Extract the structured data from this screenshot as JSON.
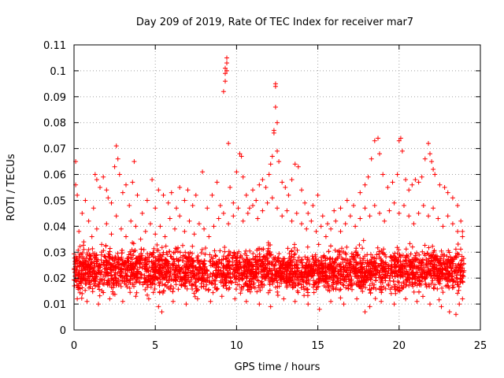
{
  "chart_data": {
    "type": "scatter",
    "title": "Day 209 of 2019, Rate Of TEC Index for receiver mar7",
    "xlabel": "GPS time / hours",
    "ylabel": "ROTI / TECUs",
    "xlim": [
      0,
      25
    ],
    "ylim": [
      0,
      0.11
    ],
    "x_ticks": [
      "0",
      "5",
      "10",
      "15",
      "20",
      "25"
    ],
    "y_ticks": [
      "0",
      "0.01",
      "0.02",
      "0.03",
      "0.04",
      "0.05",
      "0.06",
      "0.07",
      "0.08",
      "0.09",
      "0.1",
      "0.11"
    ],
    "grid": true,
    "marker": "plus",
    "color": "#ff0000",
    "series": [
      {
        "points": [
          [
            0.1,
            0.065
          ],
          [
            0.1,
            0.056
          ],
          [
            0.2,
            0.052
          ],
          [
            0.5,
            0.045
          ],
          [
            0.7,
            0.05
          ],
          [
            0.9,
            0.042
          ],
          [
            1.2,
            0.047
          ],
          [
            1.3,
            0.06
          ],
          [
            1.4,
            0.058
          ],
          [
            1.6,
            0.055
          ],
          [
            1.8,
            0.059
          ],
          [
            2.0,
            0.054
          ],
          [
            2.1,
            0.051
          ],
          [
            2.3,
            0.049
          ],
          [
            2.5,
            0.063
          ],
          [
            2.6,
            0.071
          ],
          [
            2.7,
            0.066
          ],
          [
            2.8,
            0.06
          ],
          [
            3.0,
            0.053
          ],
          [
            3.2,
            0.056
          ],
          [
            3.4,
            0.048
          ],
          [
            3.6,
            0.057
          ],
          [
            3.7,
            0.065
          ],
          [
            3.9,
            0.052
          ],
          [
            4.2,
            0.045
          ],
          [
            4.5,
            0.05
          ],
          [
            4.8,
            0.058
          ],
          [
            5.0,
            0.047
          ],
          [
            5.2,
            0.054
          ],
          [
            5.5,
            0.052
          ],
          [
            5.8,
            0.049
          ],
          [
            6.0,
            0.053
          ],
          [
            6.3,
            0.047
          ],
          [
            6.5,
            0.055
          ],
          [
            6.8,
            0.05
          ],
          [
            7.0,
            0.054
          ],
          [
            7.3,
            0.048
          ],
          [
            7.5,
            0.052
          ],
          [
            7.9,
            0.061
          ],
          [
            8.2,
            0.047
          ],
          [
            8.5,
            0.052
          ],
          [
            8.8,
            0.057
          ],
          [
            9.0,
            0.048
          ],
          [
            9.2,
            0.092
          ],
          [
            9.3,
            0.096
          ],
          [
            9.3,
            0.099
          ],
          [
            9.3,
            0.101
          ],
          [
            9.4,
            0.105
          ],
          [
            9.4,
            0.103
          ],
          [
            9.4,
            0.1
          ],
          [
            9.5,
            0.072
          ],
          [
            9.6,
            0.055
          ],
          [
            9.8,
            0.049
          ],
          [
            10.0,
            0.061
          ],
          [
            10.2,
            0.068
          ],
          [
            10.3,
            0.067
          ],
          [
            10.4,
            0.059
          ],
          [
            10.6,
            0.052
          ],
          [
            10.8,
            0.047
          ],
          [
            11.0,
            0.054
          ],
          [
            11.2,
            0.05
          ],
          [
            11.4,
            0.056
          ],
          [
            11.6,
            0.058
          ],
          [
            11.8,
            0.055
          ],
          [
            12.0,
            0.06
          ],
          [
            12.1,
            0.064
          ],
          [
            12.2,
            0.067
          ],
          [
            12.3,
            0.077
          ],
          [
            12.3,
            0.076
          ],
          [
            12.4,
            0.095
          ],
          [
            12.4,
            0.094
          ],
          [
            12.4,
            0.086
          ],
          [
            12.5,
            0.08
          ],
          [
            12.5,
            0.069
          ],
          [
            12.6,
            0.065
          ],
          [
            12.8,
            0.057
          ],
          [
            13.0,
            0.055
          ],
          [
            13.2,
            0.052
          ],
          [
            13.4,
            0.058
          ],
          [
            13.6,
            0.064
          ],
          [
            13.8,
            0.063
          ],
          [
            14.0,
            0.054
          ],
          [
            14.2,
            0.049
          ],
          [
            14.4,
            0.045
          ],
          [
            14.7,
            0.048
          ],
          [
            15.0,
            0.052
          ],
          [
            15.3,
            0.044
          ],
          [
            15.6,
            0.041
          ],
          [
            16.0,
            0.046
          ],
          [
            16.4,
            0.047
          ],
          [
            16.8,
            0.05
          ],
          [
            17.2,
            0.048
          ],
          [
            17.6,
            0.053
          ],
          [
            17.9,
            0.056
          ],
          [
            18.1,
            0.059
          ],
          [
            18.3,
            0.066
          ],
          [
            18.5,
            0.073
          ],
          [
            18.7,
            0.074
          ],
          [
            18.8,
            0.068
          ],
          [
            19.0,
            0.06
          ],
          [
            19.3,
            0.055
          ],
          [
            19.6,
            0.057
          ],
          [
            19.9,
            0.06
          ],
          [
            20.0,
            0.073
          ],
          [
            20.1,
            0.074
          ],
          [
            20.2,
            0.069
          ],
          [
            20.4,
            0.058
          ],
          [
            20.6,
            0.054
          ],
          [
            20.8,
            0.056
          ],
          [
            21.0,
            0.058
          ],
          [
            21.2,
            0.057
          ],
          [
            21.4,
            0.059
          ],
          [
            21.6,
            0.066
          ],
          [
            21.8,
            0.072
          ],
          [
            21.9,
            0.068
          ],
          [
            22.0,
            0.065
          ],
          [
            22.1,
            0.062
          ],
          [
            22.2,
            0.06
          ],
          [
            22.5,
            0.056
          ],
          [
            22.8,
            0.055
          ],
          [
            23.0,
            0.053
          ],
          [
            23.3,
            0.051
          ],
          [
            23.6,
            0.048
          ],
          [
            23.8,
            0.042
          ],
          [
            23.9,
            0.038
          ],
          [
            0.3,
            0.038
          ],
          [
            0.6,
            0.034
          ],
          [
            0.9,
            0.031
          ],
          [
            1.1,
            0.036
          ],
          [
            1.4,
            0.039
          ],
          [
            1.7,
            0.033
          ],
          [
            2.0,
            0.041
          ],
          [
            2.3,
            0.037
          ],
          [
            2.6,
            0.044
          ],
          [
            2.9,
            0.039
          ],
          [
            3.2,
            0.036
          ],
          [
            3.5,
            0.042
          ],
          [
            3.8,
            0.04
          ],
          [
            4.1,
            0.035
          ],
          [
            4.4,
            0.038
          ],
          [
            4.7,
            0.041
          ],
          [
            5.0,
            0.037
          ],
          [
            5.3,
            0.04
          ],
          [
            5.6,
            0.036
          ],
          [
            5.9,
            0.043
          ],
          [
            6.2,
            0.039
          ],
          [
            6.5,
            0.044
          ],
          [
            6.8,
            0.038
          ],
          [
            7.1,
            0.042
          ],
          [
            7.4,
            0.037
          ],
          [
            7.7,
            0.041
          ],
          [
            8.0,
            0.039
          ],
          [
            8.3,
            0.036
          ],
          [
            8.6,
            0.04
          ],
          [
            8.9,
            0.043
          ],
          [
            9.2,
            0.045
          ],
          [
            9.5,
            0.041
          ],
          [
            9.8,
            0.044
          ],
          [
            10.1,
            0.047
          ],
          [
            10.4,
            0.042
          ],
          [
            10.7,
            0.045
          ],
          [
            11.0,
            0.048
          ],
          [
            11.3,
            0.043
          ],
          [
            11.6,
            0.046
          ],
          [
            11.9,
            0.049
          ],
          [
            12.2,
            0.051
          ],
          [
            12.5,
            0.047
          ],
          [
            12.8,
            0.044
          ],
          [
            13.1,
            0.046
          ],
          [
            13.4,
            0.042
          ],
          [
            13.7,
            0.045
          ],
          [
            14.0,
            0.041
          ],
          [
            14.3,
            0.039
          ],
          [
            14.6,
            0.042
          ],
          [
            14.9,
            0.038
          ],
          [
            15.2,
            0.04
          ],
          [
            15.5,
            0.036
          ],
          [
            15.8,
            0.039
          ],
          [
            16.1,
            0.042
          ],
          [
            16.4,
            0.038
          ],
          [
            16.7,
            0.041
          ],
          [
            17.0,
            0.044
          ],
          [
            17.3,
            0.04
          ],
          [
            17.6,
            0.043
          ],
          [
            17.9,
            0.047
          ],
          [
            18.2,
            0.044
          ],
          [
            18.5,
            0.048
          ],
          [
            18.8,
            0.045
          ],
          [
            19.1,
            0.042
          ],
          [
            19.4,
            0.046
          ],
          [
            19.7,
            0.049
          ],
          [
            20.0,
            0.045
          ],
          [
            20.3,
            0.048
          ],
          [
            20.6,
            0.044
          ],
          [
            20.9,
            0.041
          ],
          [
            21.2,
            0.045
          ],
          [
            21.5,
            0.048
          ],
          [
            21.8,
            0.044
          ],
          [
            22.1,
            0.047
          ],
          [
            22.4,
            0.043
          ],
          [
            22.7,
            0.04
          ],
          [
            23.0,
            0.044
          ],
          [
            23.3,
            0.041
          ],
          [
            23.6,
            0.038
          ],
          [
            23.9,
            0.036
          ],
          [
            0.2,
            0.012
          ],
          [
            0.5,
            0.014
          ],
          [
            0.8,
            0.011
          ],
          [
            1.5,
            0.01
          ],
          [
            2.2,
            0.012
          ],
          [
            3.0,
            0.011
          ],
          [
            3.8,
            0.013
          ],
          [
            4.6,
            0.012
          ],
          [
            5.2,
            0.009
          ],
          [
            5.4,
            0.007
          ],
          [
            6.1,
            0.011
          ],
          [
            6.9,
            0.01
          ],
          [
            7.6,
            0.012
          ],
          [
            8.4,
            0.011
          ],
          [
            9.1,
            0.013
          ],
          [
            9.9,
            0.012
          ],
          [
            10.6,
            0.011
          ],
          [
            11.4,
            0.01
          ],
          [
            12.1,
            0.009
          ],
          [
            12.9,
            0.012
          ],
          [
            13.6,
            0.011
          ],
          [
            14.4,
            0.01
          ],
          [
            15.1,
            0.008
          ],
          [
            15.8,
            0.011
          ],
          [
            16.6,
            0.01
          ],
          [
            17.4,
            0.012
          ],
          [
            17.9,
            0.007
          ],
          [
            18.2,
            0.009
          ],
          [
            18.9,
            0.011
          ],
          [
            19.7,
            0.01
          ],
          [
            20.4,
            0.012
          ],
          [
            21.1,
            0.011
          ],
          [
            21.9,
            0.01
          ],
          [
            22.6,
            0.009
          ],
          [
            23.1,
            0.007
          ],
          [
            23.5,
            0.006
          ],
          [
            23.7,
            0.01
          ],
          [
            23.9,
            0.012
          ]
        ]
      }
    ],
    "dense_band": {
      "x_range": [
        0,
        24
      ],
      "y_low": 0.012,
      "y_high": 0.034,
      "count": 3200
    }
  }
}
